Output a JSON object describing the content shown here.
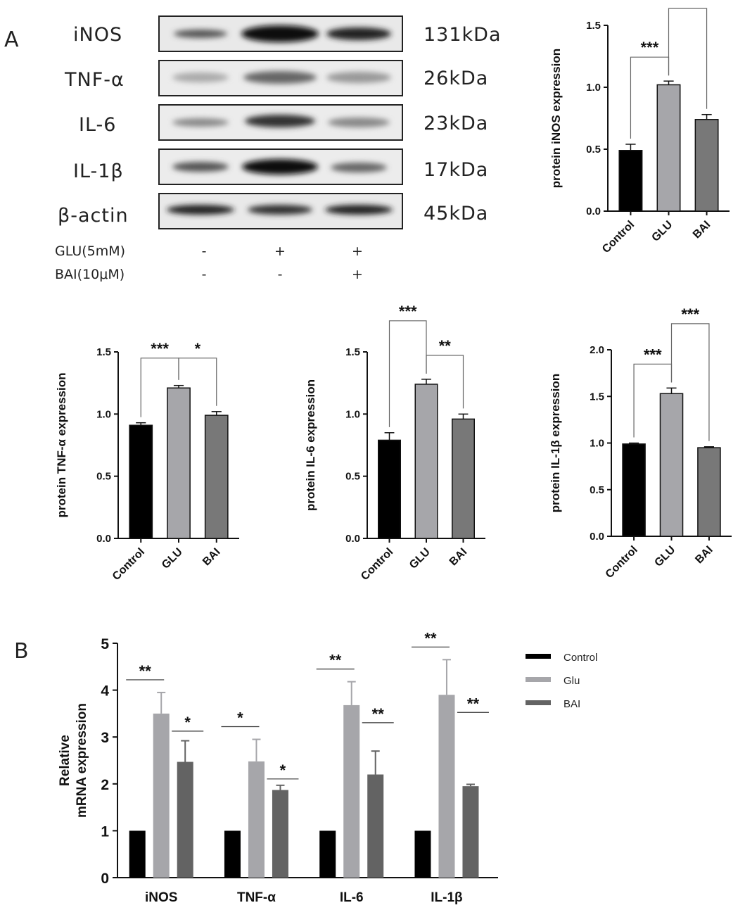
{
  "panels": {
    "a": "A",
    "b": "B"
  },
  "blot": {
    "rows": [
      {
        "protein": "iNOS",
        "size": "131kDa"
      },
      {
        "protein": "TNF-α",
        "size": "26kDa"
      },
      {
        "protein": "IL-6",
        "size": "23kDa"
      },
      {
        "protein": "IL-1β",
        "size": "17kDa"
      },
      {
        "protein": "β-actin",
        "size": "45kDa"
      }
    ],
    "treatments": [
      {
        "label": "GLU(5mM)",
        "marks": [
          "-",
          "+",
          "+"
        ]
      },
      {
        "label": "BAI(10μM)",
        "marks": [
          "-",
          "-",
          "+"
        ]
      }
    ]
  },
  "chart_data": [
    {
      "type": "bar",
      "ylabel": "protein iNOS expression",
      "categories": [
        "Control",
        "GLU",
        "BAI"
      ],
      "values": [
        0.49,
        1.02,
        0.74
      ],
      "errors": [
        0.05,
        0.03,
        0.04
      ],
      "ylim": [
        0,
        1.5
      ],
      "yticks": [
        "0.0",
        "0.5",
        "1.0",
        "1.5"
      ],
      "colors": [
        "#000000",
        "#a6a6aa",
        "#787878"
      ],
      "significance": [
        {
          "from": "Control",
          "to": "GLU",
          "label": "***"
        },
        {
          "from": "GLU",
          "to": "BAI",
          "label": "**"
        }
      ]
    },
    {
      "type": "bar",
      "ylabel": "protein TNF-α expression",
      "categories": [
        "Control",
        "GLU",
        "BAI"
      ],
      "values": [
        0.91,
        1.21,
        0.99
      ],
      "errors": [
        0.02,
        0.02,
        0.03
      ],
      "ylim": [
        0,
        1.5
      ],
      "yticks": [
        "0.0",
        "0.5",
        "1.0",
        "1.5"
      ],
      "colors": [
        "#000000",
        "#a6a6aa",
        "#787878"
      ],
      "significance": [
        {
          "from": "Control",
          "to": "GLU",
          "label": "***"
        },
        {
          "from": "GLU",
          "to": "BAI",
          "label": "*"
        }
      ]
    },
    {
      "type": "bar",
      "ylabel": "protein IL-6 expression",
      "categories": [
        "Control",
        "GLU",
        "BAI"
      ],
      "values": [
        0.79,
        1.24,
        0.96
      ],
      "errors": [
        0.06,
        0.04,
        0.04
      ],
      "ylim": [
        0,
        1.5
      ],
      "yticks": [
        "0.0",
        "0.5",
        "1.0",
        "1.5"
      ],
      "colors": [
        "#000000",
        "#a6a6aa",
        "#787878"
      ],
      "significance": [
        {
          "from": "Control",
          "to": "GLU",
          "label": "***"
        },
        {
          "from": "GLU",
          "to": "BAI",
          "label": "**"
        }
      ]
    },
    {
      "type": "bar",
      "ylabel": "protein IL-1β expression",
      "categories": [
        "Control",
        "GLU",
        "BAI"
      ],
      "values": [
        0.99,
        1.53,
        0.95
      ],
      "errors": [
        0.01,
        0.06,
        0.01
      ],
      "ylim": [
        0,
        2.0
      ],
      "yticks": [
        "0.0",
        "0.5",
        "1.0",
        "1.5",
        "2.0"
      ],
      "colors": [
        "#000000",
        "#a6a6aa",
        "#787878"
      ],
      "significance": [
        {
          "from": "Control",
          "to": "GLU",
          "label": "***"
        },
        {
          "from": "GLU",
          "to": "BAI",
          "label": "***"
        }
      ]
    },
    {
      "type": "bar",
      "ylabel": "Relative mRNA expression",
      "ylabel_lines": [
        "Relative",
        "mRNA expression"
      ],
      "categories": [
        "iNOS",
        "TNF-α",
        "IL-6",
        "IL-1β"
      ],
      "ylim": [
        0,
        5
      ],
      "yticks": [
        "0",
        "1",
        "2",
        "3",
        "4",
        "5"
      ],
      "legend_position": "top-right",
      "series": [
        {
          "name": "Control",
          "color": "#000000",
          "values": [
            1,
            1,
            1,
            1
          ],
          "errors": [
            0,
            0,
            0,
            0
          ]
        },
        {
          "name": "Glu",
          "color": "#a6a6aa",
          "values": [
            3.5,
            2.48,
            3.68,
            3.9
          ],
          "errors": [
            0.45,
            0.47,
            0.5,
            0.75
          ]
        },
        {
          "name": "BAI",
          "color": "#636363",
          "values": [
            2.47,
            1.87,
            2.2,
            1.95
          ],
          "errors": [
            0.45,
            0.1,
            0.5,
            0.04
          ]
        }
      ],
      "significance": [
        {
          "category": "iNOS",
          "pair": "Control-Glu",
          "label": "**"
        },
        {
          "category": "iNOS",
          "pair": "Glu-BAI",
          "label": "*"
        },
        {
          "category": "TNF-α",
          "pair": "Control-Glu",
          "label": "*"
        },
        {
          "category": "TNF-α",
          "pair": "Glu-BAI",
          "label": "*"
        },
        {
          "category": "IL-6",
          "pair": "Control-Glu",
          "label": "**"
        },
        {
          "category": "IL-6",
          "pair": "Glu-BAI",
          "label": "**"
        },
        {
          "category": "IL-1β",
          "pair": "Control-Glu",
          "label": "**"
        },
        {
          "category": "IL-1β",
          "pair": "Glu-BAI",
          "label": "**"
        }
      ]
    }
  ]
}
